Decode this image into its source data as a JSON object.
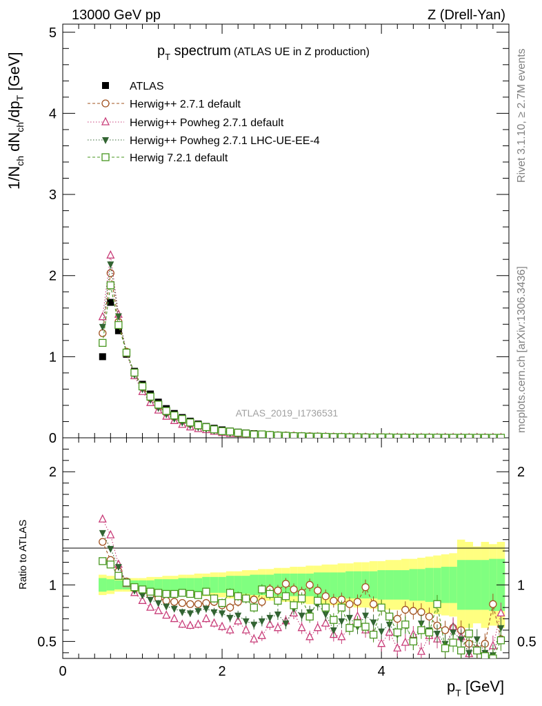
{
  "header": {
    "left": "13000 GeV pp",
    "right": "Z (Drell-Yan)"
  },
  "title": {
    "main": "p",
    "main_sub": "T",
    "main_rest": " spectrum",
    "small": "(ATLAS UE in Z production)"
  },
  "side_text": {
    "rivet": "Rivet 3.1.10, ≥ 2.7M events",
    "mcplots": "mcplots.cern.ch [arXiv:1306.3436]"
  },
  "analysis_id": "ATLAS_2019_I1736531",
  "axes": {
    "ylabel_top": "1/N_ch dN_ch/dp_T [GeV]",
    "ylabel_ratio": "Ratio to ATLAS",
    "xlabel": "p_T [GeV]"
  },
  "colors": {
    "atlas": "#000000",
    "herwig_default": "#a0501e",
    "powheg_default": "#c83c78",
    "powheg_ee4": "#326432",
    "herwig72": "#46961e",
    "band_outer": "#ffff80",
    "band_inner": "#80ff80"
  },
  "chart_data": {
    "type": "scatter",
    "x": [
      0.5,
      0.6,
      0.7,
      0.8,
      0.9,
      1.0,
      1.1,
      1.2,
      1.3,
      1.4,
      1.5,
      1.6,
      1.7,
      1.8,
      1.9,
      2.0,
      2.1,
      2.2,
      2.3,
      2.4,
      2.5,
      2.6,
      2.7,
      2.8,
      2.9,
      3.0,
      3.1,
      3.2,
      3.3,
      3.4,
      3.5,
      3.6,
      3.7,
      3.8,
      3.9,
      4.0,
      4.1,
      4.2,
      4.3,
      4.4,
      4.5,
      4.6,
      4.7,
      4.8,
      4.9,
      5.0,
      5.1,
      5.2,
      5.3,
      5.4,
      5.5
    ],
    "xlim": [
      0,
      5.6
    ],
    "top": {
      "ylim": [
        0,
        5.1
      ],
      "yticks": [
        0,
        1,
        2,
        3,
        4,
        5
      ],
      "ytick_labels": [
        "0",
        "1",
        "2",
        "3",
        "4",
        "5"
      ]
    },
    "ratio": {
      "ylim": [
        0.35,
        2.3
      ],
      "yticks": [
        0.5,
        1,
        2
      ],
      "ytick_labels": [
        "0.5",
        "1",
        "2"
      ]
    },
    "xticks": [
      0,
      2,
      4
    ],
    "xtick_labels": [
      "0",
      "2",
      "4"
    ],
    "atlas_values": [
      1.0,
      1.67,
      1.32,
      1.03,
      0.82,
      0.66,
      0.54,
      0.44,
      0.36,
      0.3,
      0.25,
      0.205,
      0.17,
      0.14,
      0.118,
      0.098,
      0.083,
      0.07,
      0.06,
      0.051,
      0.044,
      0.038,
      0.033,
      0.028,
      0.025,
      0.022,
      0.019,
      0.017,
      0.015,
      0.013,
      0.012,
      0.011,
      0.0095,
      0.0085,
      0.0075,
      0.0068,
      0.006,
      0.0054,
      0.0048,
      0.0043,
      0.0039,
      0.0035,
      0.0031,
      0.0028,
      0.0025,
      0.0022,
      0.002,
      0.0018,
      0.0016,
      0.0014,
      0.0012
    ],
    "band_inner": [
      0.06,
      0.05,
      0.04,
      0.04,
      0.04,
      0.04,
      0.04,
      0.05,
      0.05,
      0.05,
      0.06,
      0.06,
      0.06,
      0.07,
      0.07,
      0.07,
      0.08,
      0.08,
      0.08,
      0.09,
      0.09,
      0.09,
      0.1,
      0.1,
      0.1,
      0.1,
      0.1,
      0.11,
      0.11,
      0.11,
      0.11,
      0.12,
      0.12,
      0.12,
      0.12,
      0.13,
      0.13,
      0.13,
      0.13,
      0.14,
      0.14,
      0.15,
      0.15,
      0.16,
      0.16,
      0.22,
      0.22,
      0.22,
      0.22,
      0.23,
      0.23
    ],
    "band_outer": [
      0.09,
      0.08,
      0.06,
      0.06,
      0.06,
      0.06,
      0.07,
      0.07,
      0.08,
      0.08,
      0.09,
      0.09,
      0.1,
      0.1,
      0.11,
      0.11,
      0.12,
      0.12,
      0.13,
      0.13,
      0.14,
      0.14,
      0.15,
      0.15,
      0.16,
      0.16,
      0.17,
      0.17,
      0.18,
      0.18,
      0.19,
      0.19,
      0.2,
      0.2,
      0.21,
      0.21,
      0.22,
      0.22,
      0.23,
      0.23,
      0.24,
      0.25,
      0.26,
      0.27,
      0.28,
      0.4,
      0.38,
      0.34,
      0.38,
      0.36,
      0.38
    ],
    "series": [
      {
        "name": "ATLAS",
        "marker": "filled-square",
        "ratio": []
      },
      {
        "name": "Herwig++ 2.7.1 default",
        "marker": "open-circle",
        "line": "dashed",
        "ratio": [
          1.38,
          1.22,
          1.12,
          1.03,
          0.97,
          0.94,
          0.91,
          0.88,
          0.86,
          0.85,
          0.84,
          0.83,
          0.83,
          0.84,
          0.85,
          0.82,
          0.8,
          0.85,
          0.88,
          0.87,
          0.85,
          0.96,
          0.95,
          1.01,
          0.96,
          0.93,
          1.0,
          0.95,
          0.9,
          0.86,
          0.87,
          0.83,
          0.85,
          0.98,
          0.83,
          0.8,
          0.72,
          0.7,
          0.78,
          0.77,
          0.76,
          0.72,
          0.64,
          0.6,
          0.62,
          0.6,
          0.48,
          0.43,
          0.48,
          0.83,
          0.52
        ],
        "top_override": {
          "0.5": 1.29,
          "0.6": 2.03,
          "0.7": 1.43
        }
      },
      {
        "name": "Herwig++ Powheg 2.7.1 default",
        "marker": "open-triangle",
        "line": "dotted",
        "ratio": [
          1.58,
          1.44,
          1.18,
          1.01,
          0.93,
          0.86,
          0.8,
          0.77,
          0.73,
          0.7,
          0.65,
          0.64,
          0.65,
          0.7,
          0.66,
          0.63,
          0.6,
          0.68,
          0.6,
          0.52,
          0.55,
          0.65,
          0.62,
          0.68,
          0.75,
          0.62,
          0.54,
          0.62,
          0.66,
          0.56,
          0.54,
          0.62,
          0.72,
          0.6,
          0.57,
          0.48,
          0.58,
          0.44,
          0.49,
          0.56,
          0.41,
          0.55,
          0.52,
          0.44,
          0.63,
          0.54,
          0.39,
          0.44,
          0.38,
          0.46,
          0.75
        ],
        "top_override": {
          "0.5": 1.49,
          "0.6": 2.25,
          "0.7": 1.52
        }
      },
      {
        "name": "Herwig++ Powheg 2.7.1 LHC-UE-EE-4",
        "marker": "filled-triangle-down",
        "line": "dotted",
        "ratio": [
          1.46,
          1.32,
          1.16,
          1.02,
          0.95,
          0.91,
          0.87,
          0.84,
          0.81,
          0.79,
          0.76,
          0.75,
          0.77,
          0.79,
          0.76,
          0.75,
          0.71,
          0.73,
          0.68,
          0.65,
          0.68,
          0.71,
          0.74,
          0.66,
          0.79,
          0.73,
          0.76,
          0.83,
          0.74,
          0.6,
          0.68,
          0.71,
          0.63,
          0.73,
          0.67,
          0.59,
          0.65,
          0.56,
          0.64,
          0.5,
          0.66,
          0.6,
          0.57,
          0.48,
          0.58,
          0.52,
          0.4,
          0.52,
          0.4,
          0.38,
          0.62
        ],
        "top_override": {
          "0.5": 1.37,
          "0.6": 2.14,
          "0.7": 1.5
        }
      },
      {
        "name": "Herwig 7.2.1 default",
        "marker": "open-square",
        "line": "dashed",
        "ratio": [
          1.21,
          1.18,
          1.08,
          1.02,
          0.98,
          0.96,
          0.94,
          0.93,
          0.92,
          0.92,
          0.93,
          0.92,
          0.91,
          0.94,
          0.88,
          0.84,
          0.93,
          0.9,
          0.88,
          0.8,
          0.96,
          0.92,
          0.86,
          0.9,
          0.82,
          0.88,
          0.72,
          0.86,
          0.8,
          0.69,
          0.8,
          0.62,
          0.66,
          0.63,
          0.56,
          0.8,
          0.72,
          0.58,
          0.65,
          0.5,
          0.6,
          0.58,
          0.83,
          0.44,
          0.49,
          0.42,
          0.57,
          0.42,
          0.37,
          0.35,
          0.51
        ],
        "top_override": {
          "0.5": 1.17,
          "0.6": 1.88,
          "0.7": 1.39
        }
      }
    ]
  }
}
